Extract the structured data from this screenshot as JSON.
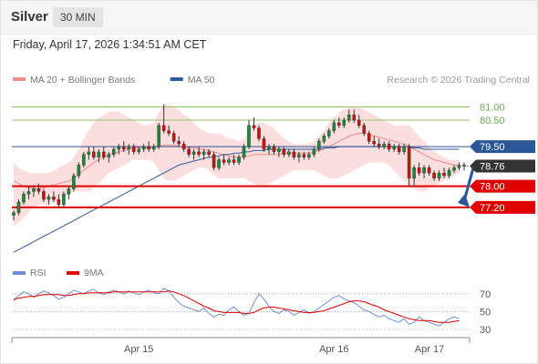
{
  "header": {
    "title": "Silver",
    "interval": "30 MIN",
    "datetime": "Friday, April 17, 2026 1:34:51 AM CET"
  },
  "colors": {
    "bollinger": "#f7b5b5",
    "ma20": "#f08a8a",
    "ma50": "#2e5c9e",
    "resistance_line": "#8cc56a",
    "pivot_line": "#2b5797",
    "support_line": "#e00000",
    "rsi": "#6f8fd8",
    "rsi_ma": "#e00000",
    "arrow": "#2b5797"
  },
  "chart_data": [
    {
      "type": "line",
      "title": "",
      "legend": [
        {
          "name": "MA 20 + Bollinger Bands",
          "color": "#f08a8a"
        },
        {
          "name": "MA 50",
          "color": "#2e5c9e"
        }
      ],
      "legend_placement": "top-left",
      "credit": "Research © 2026 Trading Central",
      "x_ticks": [
        "Apr 15",
        "Apr 16",
        "Apr 17"
      ],
      "levels": [
        {
          "label": "81.00",
          "value": 81.0,
          "kind": "resistance",
          "color": "#8cc56a",
          "badge": false
        },
        {
          "label": "80.50",
          "value": 80.5,
          "kind": "resistance",
          "color": "#8cc56a",
          "badge": false
        },
        {
          "label": "79.50",
          "value": 79.5,
          "kind": "pivot",
          "color": "#2b5797",
          "badge": true
        },
        {
          "label": "78.76",
          "value": 78.76,
          "kind": "last",
          "color": "#333333",
          "badge": true
        },
        {
          "label": "78.00",
          "value": 78.0,
          "kind": "support",
          "color": "#e00000",
          "badge": true
        },
        {
          "label": "77.20",
          "value": 77.2,
          "kind": "support",
          "color": "#e00000",
          "badge": true
        }
      ],
      "ylim": [
        75.3,
        81.5
      ],
      "candles": [
        {
          "o": 76.9,
          "h": 77.1,
          "l": 76.7,
          "c": 77.0
        },
        {
          "o": 77.0,
          "h": 77.5,
          "l": 76.9,
          "c": 77.4
        },
        {
          "o": 77.4,
          "h": 77.8,
          "l": 77.3,
          "c": 77.7
        },
        {
          "o": 77.7,
          "h": 78.0,
          "l": 77.5,
          "c": 77.8
        },
        {
          "o": 77.8,
          "h": 78.0,
          "l": 77.6,
          "c": 77.9
        },
        {
          "o": 77.9,
          "h": 78.1,
          "l": 77.7,
          "c": 77.8
        },
        {
          "o": 77.8,
          "h": 77.9,
          "l": 77.4,
          "c": 77.5
        },
        {
          "o": 77.5,
          "h": 77.7,
          "l": 77.3,
          "c": 77.6
        },
        {
          "o": 77.6,
          "h": 77.8,
          "l": 77.4,
          "c": 77.5
        },
        {
          "o": 77.5,
          "h": 77.7,
          "l": 77.2,
          "c": 77.3
        },
        {
          "o": 77.3,
          "h": 77.8,
          "l": 77.2,
          "c": 77.7
        },
        {
          "o": 77.7,
          "h": 78.0,
          "l": 77.5,
          "c": 77.9
        },
        {
          "o": 77.9,
          "h": 78.5,
          "l": 77.8,
          "c": 78.4
        },
        {
          "o": 78.4,
          "h": 78.9,
          "l": 78.3,
          "c": 78.8
        },
        {
          "o": 78.8,
          "h": 79.3,
          "l": 78.7,
          "c": 79.2
        },
        {
          "o": 79.2,
          "h": 79.5,
          "l": 79.0,
          "c": 79.3
        },
        {
          "o": 79.3,
          "h": 79.5,
          "l": 79.0,
          "c": 79.1
        },
        {
          "o": 79.1,
          "h": 79.4,
          "l": 78.9,
          "c": 79.3
        },
        {
          "o": 79.3,
          "h": 79.5,
          "l": 79.0,
          "c": 79.1
        },
        {
          "o": 79.1,
          "h": 79.3,
          "l": 78.9,
          "c": 79.2
        },
        {
          "o": 79.2,
          "h": 79.5,
          "l": 79.1,
          "c": 79.4
        },
        {
          "o": 79.4,
          "h": 79.6,
          "l": 79.2,
          "c": 79.5
        },
        {
          "o": 79.5,
          "h": 79.7,
          "l": 79.3,
          "c": 79.4
        },
        {
          "o": 79.4,
          "h": 79.6,
          "l": 79.2,
          "c": 79.5
        },
        {
          "o": 79.5,
          "h": 79.6,
          "l": 79.2,
          "c": 79.3
        },
        {
          "o": 79.3,
          "h": 79.5,
          "l": 79.2,
          "c": 79.4
        },
        {
          "o": 79.4,
          "h": 79.6,
          "l": 79.3,
          "c": 79.5
        },
        {
          "o": 79.5,
          "h": 79.7,
          "l": 79.3,
          "c": 79.4
        },
        {
          "o": 79.4,
          "h": 79.6,
          "l": 79.3,
          "c": 79.5
        },
        {
          "o": 79.5,
          "h": 80.4,
          "l": 79.4,
          "c": 80.3
        },
        {
          "o": 80.3,
          "h": 81.1,
          "l": 80.0,
          "c": 80.1
        },
        {
          "o": 80.1,
          "h": 80.3,
          "l": 79.9,
          "c": 80.0
        },
        {
          "o": 80.0,
          "h": 80.1,
          "l": 79.6,
          "c": 79.7
        },
        {
          "o": 79.7,
          "h": 79.9,
          "l": 79.5,
          "c": 79.6
        },
        {
          "o": 79.6,
          "h": 79.7,
          "l": 79.3,
          "c": 79.4
        },
        {
          "o": 79.4,
          "h": 79.5,
          "l": 79.1,
          "c": 79.2
        },
        {
          "o": 79.2,
          "h": 79.4,
          "l": 79.0,
          "c": 79.3
        },
        {
          "o": 79.3,
          "h": 79.5,
          "l": 79.1,
          "c": 79.2
        },
        {
          "o": 79.2,
          "h": 79.4,
          "l": 79.0,
          "c": 79.3
        },
        {
          "o": 79.3,
          "h": 79.4,
          "l": 79.1,
          "c": 79.2
        },
        {
          "o": 79.2,
          "h": 79.3,
          "l": 78.6,
          "c": 78.7
        },
        {
          "o": 78.7,
          "h": 79.1,
          "l": 78.6,
          "c": 79.0
        },
        {
          "o": 79.0,
          "h": 79.2,
          "l": 78.8,
          "c": 78.9
        },
        {
          "o": 78.9,
          "h": 79.1,
          "l": 78.8,
          "c": 79.0
        },
        {
          "o": 79.0,
          "h": 79.2,
          "l": 78.8,
          "c": 78.9
        },
        {
          "o": 78.9,
          "h": 79.2,
          "l": 78.8,
          "c": 79.1
        },
        {
          "o": 79.1,
          "h": 79.6,
          "l": 79.0,
          "c": 79.5
        },
        {
          "o": 79.5,
          "h": 80.5,
          "l": 79.4,
          "c": 80.3
        },
        {
          "o": 80.3,
          "h": 80.6,
          "l": 80.1,
          "c": 80.2
        },
        {
          "o": 80.2,
          "h": 80.3,
          "l": 79.7,
          "c": 79.8
        },
        {
          "o": 79.8,
          "h": 79.9,
          "l": 79.3,
          "c": 79.4
        },
        {
          "o": 79.4,
          "h": 79.6,
          "l": 79.2,
          "c": 79.5
        },
        {
          "o": 79.5,
          "h": 79.6,
          "l": 79.2,
          "c": 79.3
        },
        {
          "o": 79.3,
          "h": 79.5,
          "l": 79.1,
          "c": 79.4
        },
        {
          "o": 79.4,
          "h": 79.5,
          "l": 79.1,
          "c": 79.2
        },
        {
          "o": 79.2,
          "h": 79.4,
          "l": 79.1,
          "c": 79.3
        },
        {
          "o": 79.3,
          "h": 79.4,
          "l": 79.0,
          "c": 79.1
        },
        {
          "o": 79.1,
          "h": 79.3,
          "l": 78.9,
          "c": 79.2
        },
        {
          "o": 79.2,
          "h": 79.3,
          "l": 79.0,
          "c": 79.1
        },
        {
          "o": 79.1,
          "h": 79.3,
          "l": 79.0,
          "c": 79.2
        },
        {
          "o": 79.2,
          "h": 79.5,
          "l": 79.1,
          "c": 79.4
        },
        {
          "o": 79.4,
          "h": 79.8,
          "l": 79.3,
          "c": 79.7
        },
        {
          "o": 79.7,
          "h": 80.0,
          "l": 79.6,
          "c": 79.9
        },
        {
          "o": 79.9,
          "h": 80.2,
          "l": 79.8,
          "c": 80.1
        },
        {
          "o": 80.1,
          "h": 80.5,
          "l": 80.0,
          "c": 80.4
        },
        {
          "o": 80.4,
          "h": 80.6,
          "l": 80.2,
          "c": 80.3
        },
        {
          "o": 80.3,
          "h": 80.6,
          "l": 80.2,
          "c": 80.5
        },
        {
          "o": 80.5,
          "h": 80.9,
          "l": 80.4,
          "c": 80.7
        },
        {
          "o": 80.7,
          "h": 80.9,
          "l": 80.4,
          "c": 80.5
        },
        {
          "o": 80.5,
          "h": 80.7,
          "l": 80.2,
          "c": 80.3
        },
        {
          "o": 80.3,
          "h": 80.4,
          "l": 79.9,
          "c": 80.0
        },
        {
          "o": 80.0,
          "h": 80.1,
          "l": 79.6,
          "c": 79.7
        },
        {
          "o": 79.7,
          "h": 79.9,
          "l": 79.5,
          "c": 79.6
        },
        {
          "o": 79.6,
          "h": 79.8,
          "l": 79.4,
          "c": 79.5
        },
        {
          "o": 79.5,
          "h": 79.7,
          "l": 79.4,
          "c": 79.6
        },
        {
          "o": 79.6,
          "h": 79.7,
          "l": 79.3,
          "c": 79.4
        },
        {
          "o": 79.4,
          "h": 79.6,
          "l": 79.3,
          "c": 79.5
        },
        {
          "o": 79.5,
          "h": 79.6,
          "l": 79.2,
          "c": 79.3
        },
        {
          "o": 79.3,
          "h": 79.6,
          "l": 79.2,
          "c": 79.5
        },
        {
          "o": 79.5,
          "h": 79.6,
          "l": 78.0,
          "c": 78.3
        },
        {
          "o": 78.3,
          "h": 78.8,
          "l": 78.0,
          "c": 78.7
        },
        {
          "o": 78.7,
          "h": 78.9,
          "l": 78.4,
          "c": 78.5
        },
        {
          "o": 78.5,
          "h": 78.8,
          "l": 78.3,
          "c": 78.7
        },
        {
          "o": 78.7,
          "h": 78.8,
          "l": 78.4,
          "c": 78.5
        },
        {
          "o": 78.5,
          "h": 78.6,
          "l": 78.2,
          "c": 78.3
        },
        {
          "o": 78.3,
          "h": 78.6,
          "l": 78.2,
          "c": 78.5
        },
        {
          "o": 78.5,
          "h": 78.7,
          "l": 78.3,
          "c": 78.4
        },
        {
          "o": 78.4,
          "h": 78.7,
          "l": 78.3,
          "c": 78.6
        },
        {
          "o": 78.6,
          "h": 78.8,
          "l": 78.5,
          "c": 78.7
        },
        {
          "o": 78.7,
          "h": 78.9,
          "l": 78.6,
          "c": 78.8
        },
        {
          "o": 78.8,
          "h": 78.9,
          "l": 78.6,
          "c": 78.76
        }
      ],
      "ma20": [
        78.2,
        78.1,
        78.0,
        77.95,
        77.9,
        77.9,
        77.95,
        78.0,
        78.05,
        78.1,
        78.15,
        78.2,
        78.3,
        78.45,
        78.6,
        78.75,
        78.9,
        79.0,
        79.1,
        79.2,
        79.25,
        79.3,
        79.35,
        79.4,
        79.45,
        79.45,
        79.45,
        79.45,
        79.45,
        79.5,
        79.55,
        79.55,
        79.55,
        79.5,
        79.5,
        79.45,
        79.45,
        79.4,
        79.4,
        79.35,
        79.3,
        79.25,
        79.2,
        79.15,
        79.1,
        79.1,
        79.1,
        79.15,
        79.2,
        79.2,
        79.2,
        79.2,
        79.2,
        79.2,
        79.25,
        79.25,
        79.25,
        79.25,
        79.25,
        79.25,
        79.3,
        79.35,
        79.4,
        79.5,
        79.6,
        79.7,
        79.8,
        79.9,
        79.95,
        80.0,
        80.0,
        79.95,
        79.9,
        79.85,
        79.8,
        79.75,
        79.7,
        79.65,
        79.6,
        79.5,
        79.4,
        79.3,
        79.2,
        79.1,
        79.0,
        78.95,
        78.9,
        78.85,
        78.8,
        78.78
      ],
      "bb_upper": [
        78.9,
        78.7,
        78.6,
        78.5,
        78.5,
        78.5,
        78.5,
        78.5,
        78.6,
        78.7,
        78.8,
        78.9,
        79.1,
        79.4,
        79.8,
        80.1,
        80.4,
        80.6,
        80.7,
        80.8,
        80.85,
        80.8,
        80.7,
        80.6,
        80.5,
        80.4,
        80.3,
        80.3,
        80.4,
        80.8,
        81.1,
        81.1,
        81.0,
        80.9,
        80.7,
        80.6,
        80.4,
        80.2,
        80.1,
        80.0,
        80.0,
        80.0,
        79.9,
        79.8,
        79.8,
        79.7,
        79.8,
        80.1,
        80.3,
        80.4,
        80.4,
        80.3,
        80.2,
        80.0,
        79.8,
        79.7,
        79.6,
        79.6,
        79.6,
        79.6,
        79.7,
        79.9,
        80.1,
        80.4,
        80.6,
        80.8,
        80.9,
        81.0,
        81.0,
        81.0,
        80.9,
        80.8,
        80.7,
        80.6,
        80.5,
        80.4,
        80.3,
        80.3,
        80.3,
        80.3,
        80.1,
        79.9,
        79.7,
        79.5,
        79.3,
        79.2,
        79.1,
        79.0,
        79.0,
        79.0
      ],
      "bb_lower": [
        76.5,
        76.6,
        76.8,
        77.0,
        77.2,
        77.3,
        77.3,
        77.3,
        77.4,
        77.5,
        77.6,
        77.7,
        77.8,
        77.8,
        77.8,
        77.8,
        77.9,
        78.1,
        78.3,
        78.5,
        78.6,
        78.7,
        78.8,
        78.9,
        79.0,
        79.0,
        79.0,
        79.0,
        78.9,
        78.6,
        78.3,
        78.2,
        78.2,
        78.3,
        78.4,
        78.5,
        78.6,
        78.7,
        78.7,
        78.6,
        78.4,
        78.3,
        78.3,
        78.3,
        78.3,
        78.3,
        78.3,
        78.2,
        78.1,
        78.0,
        78.0,
        78.1,
        78.2,
        78.3,
        78.4,
        78.5,
        78.6,
        78.6,
        78.6,
        78.6,
        78.6,
        78.5,
        78.4,
        78.3,
        78.3,
        78.3,
        78.4,
        78.5,
        78.6,
        78.7,
        78.8,
        78.9,
        78.9,
        78.9,
        78.9,
        78.8,
        78.6,
        78.4,
        78.2,
        78.0,
        77.9,
        77.8,
        77.8,
        77.9,
        78.0,
        78.1,
        78.2,
        78.3,
        78.4,
        78.5
      ],
      "ma50": [
        75.5,
        75.6,
        75.7,
        75.8,
        75.9,
        76.0,
        76.1,
        76.2,
        76.3,
        76.4,
        76.5,
        76.6,
        76.7,
        76.8,
        76.9,
        77.0,
        77.1,
        77.2,
        77.3,
        77.4,
        77.5,
        77.6,
        77.7,
        77.8,
        77.9,
        78.0,
        78.1,
        78.2,
        78.3,
        78.4,
        78.5,
        78.6,
        78.7,
        78.8,
        78.85,
        78.9,
        78.95,
        79.0,
        79.05,
        79.1,
        79.1,
        79.15,
        79.2,
        79.2,
        79.25,
        79.25,
        79.3,
        79.3,
        79.35,
        79.35,
        79.35,
        79.4,
        79.4,
        79.4,
        79.4,
        79.4,
        79.4,
        79.4,
        79.4,
        79.4,
        79.4,
        79.4,
        79.45,
        79.45,
        79.45,
        79.5,
        79.5,
        79.5,
        79.5,
        79.5,
        79.5,
        79.5,
        79.5,
        79.5,
        79.5,
        79.5,
        79.5,
        79.5,
        79.5,
        79.5,
        79.45,
        79.45,
        79.4,
        79.4,
        79.4,
        79.4,
        79.4,
        79.4,
        79.4,
        79.4
      ]
    },
    {
      "type": "line",
      "title": "",
      "legend": [
        {
          "name": "RSI",
          "color": "#6f8fd8"
        },
        {
          "name": "9MA",
          "color": "#e00000"
        }
      ],
      "legend_placement": "top-left",
      "y_ticks": [
        "70",
        "50",
        "30"
      ],
      "ylim": [
        25,
        82
      ],
      "rsi": [
        62,
        68,
        72,
        70,
        66,
        70,
        73,
        71,
        68,
        64,
        66,
        70,
        74,
        72,
        70,
        73,
        75,
        71,
        69,
        72,
        74,
        72,
        70,
        73,
        71,
        69,
        72,
        74,
        71,
        70,
        76,
        73,
        66,
        60,
        56,
        54,
        52,
        50,
        54,
        48,
        44,
        47,
        46,
        52,
        55,
        50,
        46,
        48,
        60,
        70,
        64,
        56,
        50,
        48,
        52,
        50,
        46,
        49,
        52,
        48,
        50,
        54,
        58,
        62,
        66,
        68,
        64,
        62,
        60,
        56,
        52,
        50,
        47,
        44,
        46,
        42,
        40,
        38,
        42,
        36,
        38,
        44,
        40,
        38,
        36,
        34,
        38,
        42,
        44,
        42
      ],
      "rsi_ma": [
        64,
        65,
        66,
        67,
        67,
        68,
        69,
        69,
        69,
        69,
        68,
        68,
        69,
        70,
        70,
        71,
        71,
        71,
        71,
        71,
        72,
        72,
        72,
        72,
        72,
        72,
        72,
        72,
        72,
        72,
        72,
        73,
        72,
        70,
        68,
        65,
        62,
        59,
        56,
        54,
        51,
        50,
        49,
        49,
        49,
        49,
        48,
        48,
        49,
        52,
        54,
        55,
        55,
        54,
        53,
        52,
        51,
        50,
        49,
        49,
        49,
        50,
        51,
        53,
        55,
        57,
        59,
        61,
        62,
        62,
        61,
        59,
        57,
        55,
        52,
        50,
        48,
        46,
        44,
        42,
        41,
        40,
        40,
        40,
        39,
        38,
        38,
        38,
        39,
        40
      ]
    }
  ]
}
